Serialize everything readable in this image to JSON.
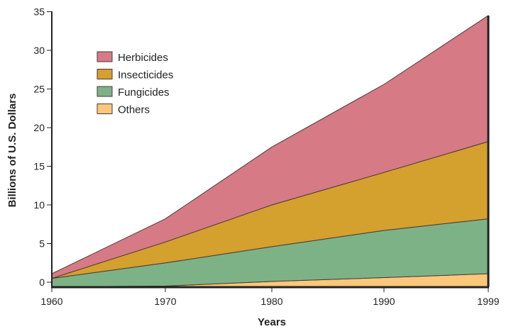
{
  "chart_data": {
    "type": "area",
    "stacked": true,
    "title": "",
    "xlabel": "Years",
    "ylabel": "Billions of U.S. Dollars",
    "x": [
      1960,
      1970,
      1980,
      1990,
      1999
    ],
    "x_ticks": [
      "1960",
      "1970",
      "1980",
      "1990",
      "1999"
    ],
    "y_ticks": [
      "0",
      "5",
      "10",
      "15",
      "20",
      "25",
      "30",
      "35"
    ],
    "ylim": [
      -0.6,
      35
    ],
    "legend_position": "top-left",
    "grid": false,
    "series": [
      {
        "name": "Others",
        "color": "#fbc77a",
        "values": [
          0,
          0.1,
          0.7,
          1.2,
          1.7
        ]
      },
      {
        "name": "Fungicides",
        "color": "#7db287",
        "values": [
          1.1,
          3.0,
          4.5,
          6.1,
          7.1
        ]
      },
      {
        "name": "Insecticides",
        "color": "#d4a02e",
        "values": [
          0,
          2.7,
          5.4,
          7.5,
          10.0
        ]
      },
      {
        "name": "Herbicides",
        "color": "#d67a85",
        "values": [
          0.6,
          3.0,
          7.5,
          11.4,
          16.3
        ]
      }
    ],
    "legend": [
      "Herbicides",
      "Insecticides",
      "Fungicides",
      "Others"
    ]
  }
}
